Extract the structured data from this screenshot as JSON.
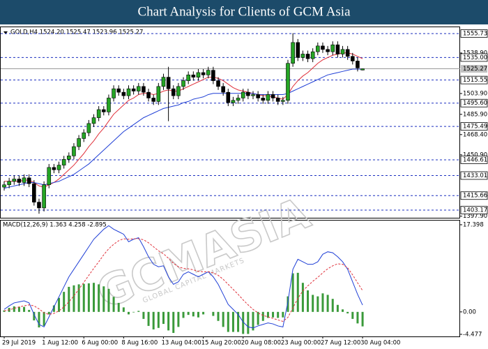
{
  "chart_data": [
    {
      "type": "candlestick",
      "title": "Chart Analysis for Clients of GCM Asia",
      "label": "GOLD,H4  1524.20 1525.47 1523.96 1525.27",
      "watermark": "GCMASIA",
      "watermark_subtitle": "GLOBAL CAPITAL MARKETS",
      "categories": [
        "29 Jul 2019",
        null,
        null,
        null,
        null,
        null,
        null,
        null,
        "1 Aug 12:00",
        null,
        null,
        null,
        null,
        null,
        null,
        null,
        "6 Aug 00:00",
        null,
        null,
        null,
        null,
        null,
        null,
        null,
        "8 Aug 16:00",
        null,
        null,
        null,
        null,
        null,
        null,
        null,
        "13 Aug 04:00",
        null,
        null,
        null,
        null,
        null,
        null,
        null,
        "15 Aug 20:00",
        null,
        null,
        null,
        null,
        null,
        null,
        null,
        "20 Aug 08:00",
        null,
        null,
        null,
        null,
        null,
        null,
        null,
        "23 Aug 00:00",
        null,
        null,
        null,
        null,
        null,
        null,
        null,
        "27 Aug 12:00",
        null,
        null,
        null,
        null,
        null,
        null,
        null,
        "30 Aug 04:00"
      ],
      "open": [
        1423,
        1425,
        1428,
        1430,
        1427,
        1431,
        1426,
        1410,
        1405,
        1425,
        1440,
        1438,
        1442,
        1447,
        1450,
        1458,
        1465,
        1470,
        1478,
        1483,
        1490,
        1488,
        1500,
        1508,
        1505,
        1502,
        1508,
        1506,
        1510,
        1505,
        1500,
        1497,
        1510,
        1518,
        1508,
        1502,
        1510,
        1515,
        1520,
        1518,
        1522,
        1520,
        1524,
        1515,
        1510,
        1505,
        1496,
        1498,
        1500,
        1505,
        1502,
        1503,
        1500,
        1498,
        1503,
        1500,
        1497,
        1498,
        1530,
        1548,
        1535,
        1538,
        1534,
        1540,
        1545,
        1542,
        1540,
        1546,
        1538,
        1542,
        1536,
        1532,
        1524.2
      ],
      "high": [
        1428,
        1431,
        1433,
        1433,
        1434,
        1434,
        1429,
        1413,
        1428,
        1443,
        1443,
        1445,
        1450,
        1453,
        1461,
        1468,
        1473,
        1481,
        1486,
        1493,
        1493,
        1503,
        1511,
        1511,
        1508,
        1511,
        1511,
        1513,
        1513,
        1508,
        1503,
        1513,
        1521,
        1527,
        1511,
        1513,
        1518,
        1523,
        1523,
        1525,
        1525,
        1527,
        1527,
        1518,
        1513,
        1508,
        1501,
        1503,
        1508,
        1508,
        1506,
        1506,
        1503,
        1506,
        1506,
        1503,
        1501,
        1533,
        1556,
        1551,
        1541,
        1541,
        1543,
        1548,
        1548,
        1545,
        1549,
        1549,
        1545,
        1545,
        1539,
        1535,
        1525.47
      ],
      "low": [
        1420,
        1422,
        1425,
        1424,
        1424,
        1423,
        1407,
        1400,
        1402,
        1422,
        1435,
        1435,
        1439,
        1444,
        1447,
        1455,
        1462,
        1467,
        1475,
        1480,
        1485,
        1485,
        1497,
        1502,
        1499,
        1499,
        1503,
        1503,
        1502,
        1497,
        1494,
        1494,
        1507,
        1480,
        1499,
        1499,
        1507,
        1512,
        1515,
        1515,
        1517,
        1517,
        1512,
        1507,
        1502,
        1493,
        1493,
        1495,
        1497,
        1499,
        1499,
        1497,
        1495,
        1495,
        1497,
        1494,
        1494,
        1495,
        1527,
        1532,
        1532,
        1531,
        1531,
        1537,
        1539,
        1537,
        1537,
        1535,
        1535,
        1533,
        1529,
        1523,
        1523.96
      ],
      "close": [
        1425,
        1428,
        1430,
        1427,
        1431,
        1426,
        1410,
        1405,
        1425,
        1440,
        1438,
        1442,
        1447,
        1450,
        1458,
        1465,
        1470,
        1478,
        1483,
        1490,
        1488,
        1500,
        1508,
        1505,
        1502,
        1508,
        1506,
        1510,
        1505,
        1500,
        1497,
        1510,
        1518,
        1508,
        1502,
        1510,
        1515,
        1520,
        1518,
        1522,
        1520,
        1524,
        1515,
        1510,
        1505,
        1496,
        1498,
        1500,
        1505,
        1502,
        1503,
        1500,
        1498,
        1503,
        1500,
        1497,
        1498,
        1530,
        1548,
        1535,
        1538,
        1534,
        1540,
        1545,
        1542,
        1540,
        1546,
        1538,
        1542,
        1536,
        1532,
        1526,
        1525.27
      ],
      "up_color": "#25a525",
      "down_color": "#000000",
      "series": [
        {
          "color": "#e0303a",
          "values": [
            1428,
            1428,
            1428,
            1428,
            1429,
            1429,
            1427,
            1424,
            1423,
            1425,
            1427,
            1430,
            1434,
            1438,
            1442,
            1447,
            1452,
            1458,
            1463,
            1469,
            1474,
            1480,
            1486,
            1490,
            1494,
            1498,
            1500,
            1503,
            1504,
            1504,
            1503,
            1504,
            1506,
            1507,
            1506,
            1506,
            1508,
            1510,
            1512,
            1514,
            1516,
            1518,
            1518,
            1517,
            1515,
            1512,
            1509,
            1507,
            1506,
            1505,
            1504,
            1503,
            1502,
            1502,
            1501,
            1500,
            1499,
            1503,
            1510,
            1515,
            1519,
            1522,
            1526,
            1530,
            1533,
            1535,
            1537,
            1538,
            1539,
            1539,
            1538,
            1536,
            1534
          ]
        },
        {
          "color": "#1f3fd6",
          "values": [
            1422,
            1423,
            1424,
            1425,
            1426,
            1427,
            1427,
            1426,
            1425,
            1426,
            1427,
            1428,
            1430,
            1432,
            1434,
            1437,
            1440,
            1443,
            1447,
            1451,
            1455,
            1459,
            1463,
            1467,
            1471,
            1474,
            1477,
            1480,
            1483,
            1485,
            1487,
            1489,
            1491,
            1492,
            1493,
            1494,
            1496,
            1497,
            1499,
            1500,
            1501,
            1503,
            1504,
            1504,
            1504,
            1504,
            1504,
            1504,
            1504,
            1504,
            1504,
            1503,
            1503,
            1503,
            1503,
            1503,
            1503,
            1504,
            1506,
            1508,
            1510,
            1512,
            1514,
            1516,
            1518,
            1520,
            1521,
            1522,
            1523,
            1524,
            1525,
            1525,
            1525
          ]
        }
      ],
      "levels": [
        1555.73,
        {
          "value": 1535,
          "label": "1535.00"
        },
        1515.55,
        {
          "value": 1495.6,
          "label": "1495.60"
        },
        1475.49,
        1446.61,
        1433.01,
        1415.66,
        1403.17
      ],
      "level_color": "#1a2fbf",
      "last_price": 1525.27,
      "ylim": [
        1396.5,
        1561.2
      ],
      "yticks": [
        {
          "value": 1397.9,
          "label": "1397.90"
        },
        {
          "value": 1450.9,
          "label": "1450.90"
        },
        {
          "value": 1468.4,
          "label": "1468.40"
        },
        {
          "value": 1485.9,
          "label": "1485.90"
        },
        {
          "value": 1503.9,
          "label": "1503.90"
        },
        {
          "value": 1538.9,
          "label": "1538.90"
        }
      ]
    },
    {
      "type": "macd",
      "label": "MACD(12,26,9) 1.363 4.258 -2.895",
      "series": [
        {
          "color": "#1f3fd6",
          "values": [
            0.5,
            1.2,
            1.8,
            2,
            2.2,
            1.8,
            -0.5,
            -2.5,
            -3,
            -1,
            1,
            3,
            5,
            7,
            8.5,
            10,
            11.5,
            13,
            14.5,
            15.5,
            16.5,
            17.2,
            16.5,
            16,
            15.5,
            14,
            14.5,
            14.8,
            13,
            11,
            9.5,
            9,
            9.2,
            7,
            5.5,
            6,
            7.5,
            8,
            7.5,
            7,
            7.5,
            8,
            7,
            5.5,
            3.5,
            1.5,
            0.5,
            -0.5,
            -2,
            -3,
            -3.2,
            -2.8,
            -2.5,
            -2.2,
            -2.4,
            -2.8,
            -3,
            2,
            8.5,
            10.5,
            10,
            9.5,
            9.5,
            10,
            11.5,
            12,
            11.8,
            11,
            10,
            8.5,
            6,
            3.5,
            1.363
          ]
        },
        {
          "color": "#e0303a",
          "values": [
            0.2,
            0.4,
            0.7,
            1,
            1.2,
            1.4,
            1.2,
            0.6,
            -0.2,
            -0.5,
            -0.3,
            0.2,
            1,
            2,
            3.2,
            4.5,
            5.9,
            7.3,
            8.7,
            10,
            11.4,
            12.6,
            13.5,
            14.2,
            14.6,
            14.5,
            14.6,
            14.6,
            14.4,
            13.8,
            13,
            12.2,
            11.6,
            10.7,
            9.7,
            9,
            8.7,
            8.6,
            8.4,
            8.1,
            8,
            8,
            7.8,
            7.3,
            6.5,
            5.5,
            4.5,
            3.5,
            2.4,
            1.4,
            0.5,
            -0.2,
            -0.7,
            -1,
            -1.3,
            -1.6,
            -1.9,
            -1.1,
            0.8,
            2.7,
            4.2,
            5.2,
            6.1,
            6.9,
            7.8,
            8.6,
            9.2,
            9.6,
            9.5,
            8.8,
            7.4,
            5.8,
            4.258
          ]
        }
      ],
      "histogram": {
        "color": "#3a9a3a",
        "values": [
          0.3,
          0.8,
          1.1,
          1,
          1,
          0.4,
          -1.7,
          -3.1,
          -2.8,
          -0.5,
          1.3,
          2.8,
          4,
          5,
          5.3,
          5.5,
          5.6,
          5.7,
          5.8,
          5.5,
          5.1,
          4.6,
          3,
          1.8,
          0.9,
          -0.5,
          -0.1,
          0.2,
          -1.4,
          -2.8,
          -3.5,
          -3.2,
          -2.4,
          -3.7,
          -4.2,
          -3,
          -1.2,
          -0.6,
          -0.9,
          -1.1,
          -0.5,
          0,
          -0.8,
          -1.8,
          -3,
          -4,
          -4,
          -4,
          -4.4,
          -4.4,
          -3.7,
          -2.6,
          -1.8,
          -1.2,
          -1.1,
          -1.2,
          -1.1,
          3.1,
          7.7,
          7.8,
          5.8,
          4.3,
          3.4,
          3.1,
          3.7,
          3.4,
          2.6,
          1.4,
          0.5,
          -0.3,
          -1.4,
          -2.3,
          -2.895
        ]
      },
      "ylim": [
        -4.9,
        18.23
      ],
      "yticks": [
        -4.477,
        {
          "value": 0,
          "label": "0.00"
        },
        17.398
      ]
    }
  ]
}
